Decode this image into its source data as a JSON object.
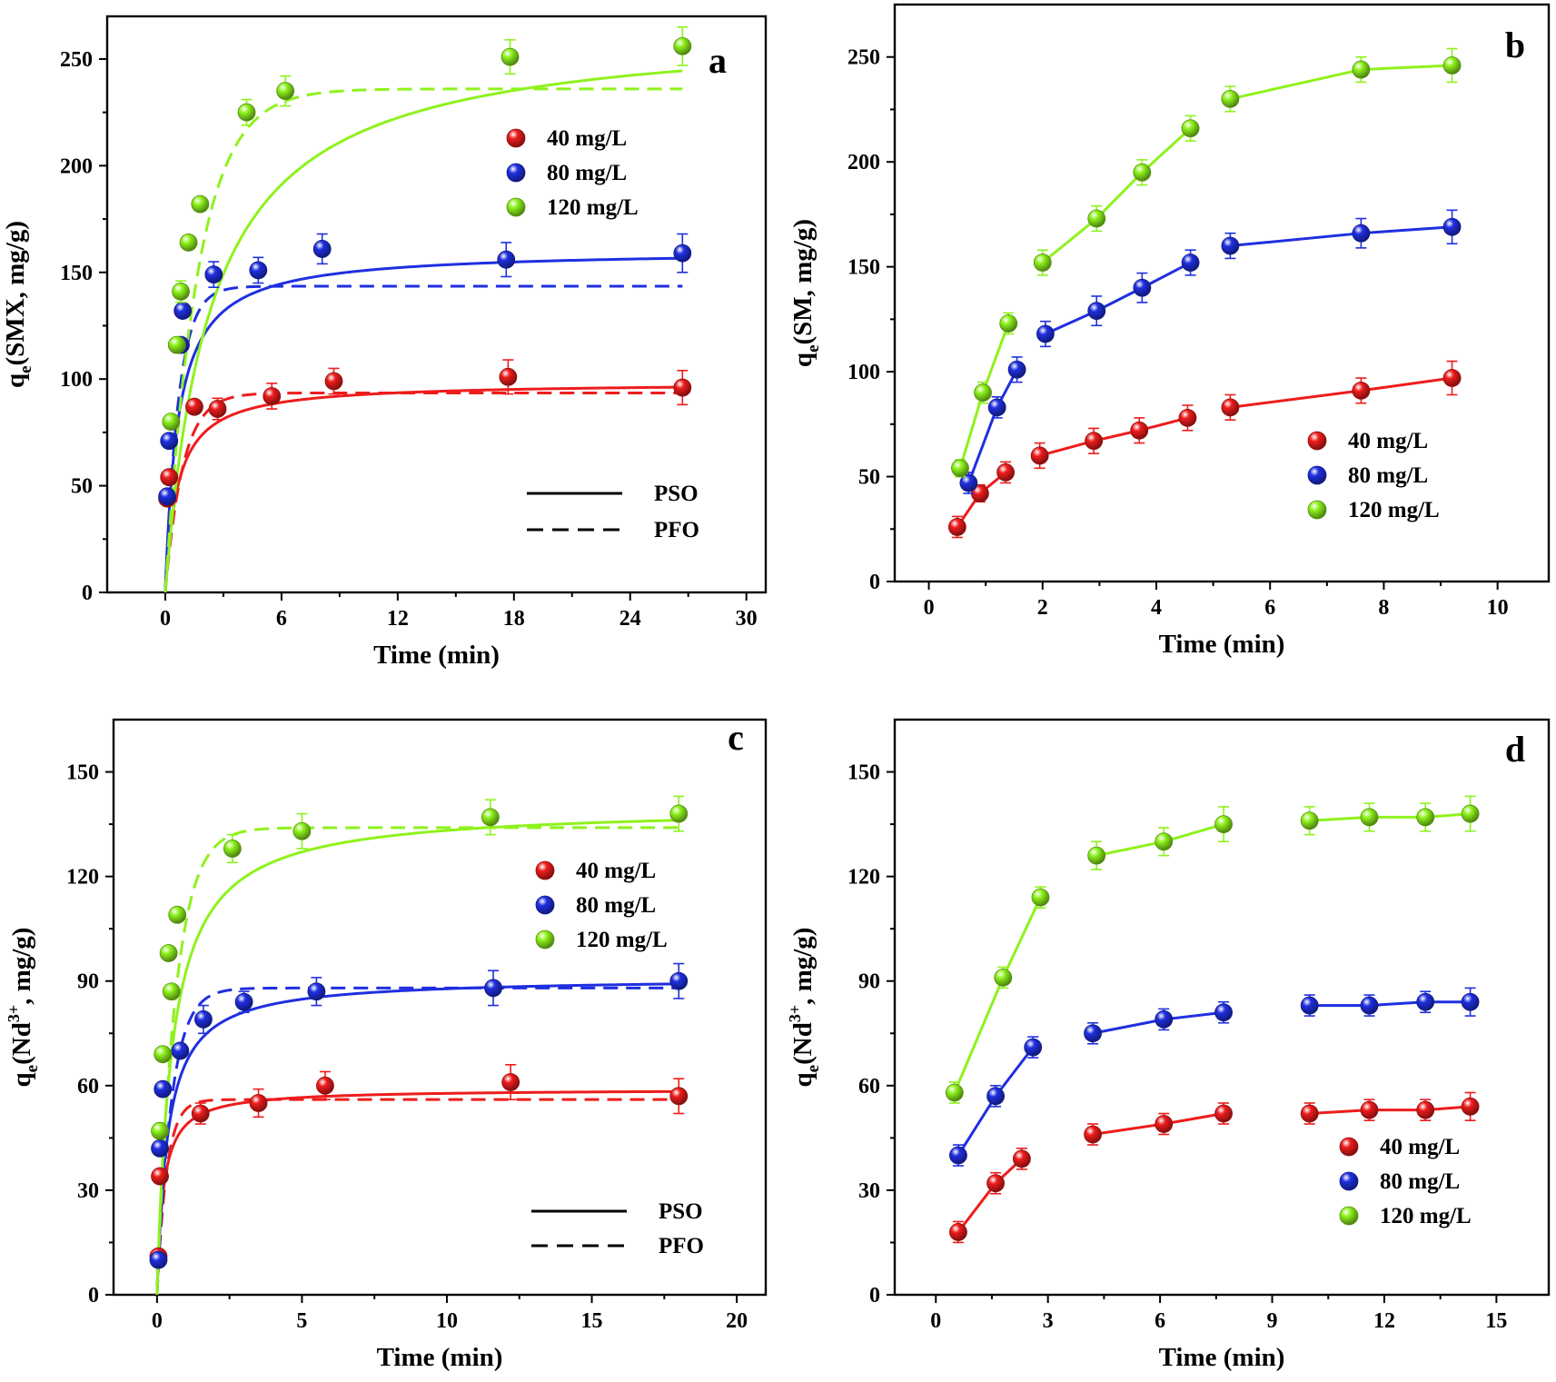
{
  "colors": {
    "40": "#ee1c1c",
    "80": "#1f2fe0",
    "120": "#8ef21c"
  },
  "chart_data": [
    {
      "id": "a",
      "type": "scatter",
      "panel_label": "a",
      "xlabel": "Time (min)",
      "ylabel_main": "q",
      "ylabel_sub": "e",
      "ylabel_rest": "(SMX, mg/g)",
      "ylabel_sup": "",
      "xlim": [
        -3,
        31
      ],
      "ylim": [
        0,
        270
      ],
      "xticks": [
        0,
        6,
        12,
        18,
        24,
        30
      ],
      "yticks": [
        0,
        50,
        100,
        150,
        200,
        250
      ],
      "xtick_labels": [
        "0",
        "6",
        "12",
        "18",
        "24",
        "30"
      ],
      "ytick_labels": [
        "0",
        "50",
        "100",
        "150",
        "200",
        "250"
      ],
      "grid": false,
      "legend_position": "upper-middle",
      "line_legend_position": "lower-right",
      "series": [
        {
          "name": "40 mg/L",
          "color_key": "40",
          "x": [
            0.1,
            0.2,
            1.5,
            2.7,
            5.5,
            8.7,
            17.7,
            26.7
          ],
          "y": [
            44,
            54,
            87,
            86,
            92,
            99,
            101,
            96
          ],
          "err": [
            0,
            0,
            3,
            5,
            6,
            6,
            8,
            8
          ]
        },
        {
          "name": "80 mg/L",
          "color_key": "80",
          "x": [
            0.1,
            0.2,
            0.8,
            0.9,
            2.5,
            4.8,
            8.1,
            17.6,
            26.7
          ],
          "y": [
            45,
            71,
            116,
            132,
            149,
            151,
            161,
            156,
            159
          ],
          "err": [
            0,
            0,
            0,
            0,
            6,
            6,
            7,
            8,
            9
          ]
        },
        {
          "name": "120 mg/L",
          "color_key": "120",
          "x": [
            0.3,
            0.6,
            0.8,
            1.2,
            1.8,
            4.2,
            6.2,
            17.8,
            26.7
          ],
          "y": [
            80,
            116,
            141,
            164,
            182,
            225,
            235,
            251,
            256
          ],
          "err": [
            0,
            0,
            5,
            0,
            0,
            6,
            7,
            8,
            9
          ]
        }
      ],
      "fits": [
        {
          "model": "PSO",
          "series": "40 mg/L",
          "style": "solid",
          "qe": 98.5,
          "k": 0.016,
          "t_max": 26.7
        },
        {
          "model": "PFO",
          "series": "40 mg/L",
          "style": "dashed",
          "qe": 93.5,
          "k": 1.1,
          "t_max": 26.7
        },
        {
          "model": "PSO",
          "series": "80 mg/L",
          "style": "solid",
          "qe": 160.5,
          "k": 0.0095,
          "t_max": 26.7
        },
        {
          "model": "PFO",
          "series": "80 mg/L",
          "style": "dashed",
          "qe": 143.5,
          "k": 1.45,
          "t_max": 26.7
        },
        {
          "model": "PSO",
          "series": "120 mg/L",
          "style": "solid",
          "qe": 266,
          "k": 0.0016,
          "t_max": 26.7
        },
        {
          "model": "PFO",
          "series": "120 mg/L",
          "style": "dashed",
          "qe": 236,
          "k": 0.6,
          "t_max": 26.7
        }
      ],
      "legend": [
        "40 mg/L",
        "80 mg/L",
        "120 mg/L"
      ],
      "line_legend": [
        {
          "label": "PSO",
          "style": "solid"
        },
        {
          "label": "PFO",
          "style": "dashed"
        }
      ]
    },
    {
      "id": "b",
      "type": "scatter",
      "panel_label": "b",
      "xlabel": "Time (min)",
      "ylabel_main": "q",
      "ylabel_sub": "e",
      "ylabel_rest": "(SM, mg/g)",
      "ylabel_sup": "",
      "xlim": [
        -0.6,
        10.9
      ],
      "ylim": [
        0,
        275
      ],
      "xticks": [
        0,
        2,
        4,
        6,
        8,
        10
      ],
      "yticks": [
        0,
        50,
        100,
        150,
        200,
        250
      ],
      "xtick_labels": [
        "0",
        "2",
        "4",
        "6",
        "8",
        "10"
      ],
      "ytick_labels": [
        "0",
        "50",
        "100",
        "150",
        "200",
        "250"
      ],
      "grid": false,
      "legend_position": "lower-right",
      "series": [
        {
          "name": "40 mg/L",
          "color_key": "40",
          "x": [
            0.5,
            0.9,
            1.35,
            1.95,
            2.9,
            3.7,
            4.55,
            5.3,
            7.6,
            9.2
          ],
          "y": [
            26,
            42,
            52,
            60,
            67,
            72,
            78,
            83,
            91,
            97
          ],
          "err": [
            5,
            4,
            5,
            6,
            6,
            6,
            6,
            6,
            6,
            8
          ],
          "segments": [
            [
              0,
              2
            ],
            [
              3,
              6
            ],
            [
              7,
              9
            ]
          ]
        },
        {
          "name": "80 mg/L",
          "color_key": "80",
          "x": [
            0.7,
            1.2,
            1.55,
            2.05,
            2.95,
            3.75,
            4.6,
            5.3,
            7.6,
            9.2
          ],
          "y": [
            47,
            83,
            101,
            118,
            129,
            140,
            152,
            160,
            166,
            169
          ],
          "err": [
            5,
            5,
            6,
            6,
            7,
            7,
            6,
            6,
            7,
            8
          ],
          "segments": [
            [
              0,
              2
            ],
            [
              3,
              6
            ],
            [
              7,
              9
            ]
          ]
        },
        {
          "name": "120 mg/L",
          "color_key": "120",
          "x": [
            0.55,
            0.95,
            1.4,
            2.0,
            2.95,
            3.75,
            4.6,
            5.3,
            7.6,
            9.2
          ],
          "y": [
            54,
            90,
            123,
            152,
            173,
            195,
            216,
            230,
            244,
            246
          ],
          "err": [
            4,
            5,
            5,
            6,
            6,
            6,
            6,
            6,
            6,
            8
          ],
          "segments": [
            [
              0,
              2
            ],
            [
              3,
              6
            ],
            [
              7,
              9
            ]
          ]
        }
      ],
      "legend": [
        "40 mg/L",
        "80 mg/L",
        "120 mg/L"
      ]
    },
    {
      "id": "c",
      "type": "scatter",
      "panel_label": "c",
      "xlabel": "Time (min)",
      "ylabel_main": "q",
      "ylabel_sub": "e",
      "ylabel_rest": "(Nd  , mg/g)",
      "ylabel_sup": "3+",
      "xlim": [
        -1.5,
        21
      ],
      "ylim": [
        0,
        165
      ],
      "xticks": [
        0,
        5,
        10,
        15,
        20
      ],
      "yticks": [
        0,
        30,
        60,
        90,
        120,
        150
      ],
      "xtick_labels": [
        "0",
        "5",
        "10",
        "15",
        "20"
      ],
      "ytick_labels": [
        "0",
        "30",
        "60",
        "90",
        "120",
        "150"
      ],
      "grid": false,
      "legend_position": "upper-middle",
      "line_legend_position": "lower-right",
      "series": [
        {
          "name": "40 mg/L",
          "color_key": "40",
          "x": [
            0.05,
            0.1,
            1.5,
            3.5,
            5.8,
            12.2,
            18.0
          ],
          "y": [
            11,
            34,
            52,
            55,
            60,
            61,
            57
          ],
          "err": [
            0,
            0,
            3,
            4,
            4,
            5,
            5
          ]
        },
        {
          "name": "80 mg/L",
          "color_key": "80",
          "x": [
            0.05,
            0.1,
            0.2,
            0.8,
            1.6,
            3.0,
            5.5,
            11.6,
            18.0
          ],
          "y": [
            10,
            42,
            59,
            70,
            79,
            84,
            87,
            88,
            90
          ],
          "err": [
            0,
            0,
            0,
            0,
            4,
            3,
            4,
            5,
            5
          ]
        },
        {
          "name": "120 mg/L",
          "color_key": "120",
          "x": [
            0.1,
            0.2,
            0.4,
            0.5,
            0.7,
            2.6,
            5.0,
            11.5,
            18.0
          ],
          "y": [
            47,
            69,
            98,
            87,
            109,
            128,
            133,
            137,
            138
          ],
          "err": [
            0,
            0,
            0,
            0,
            0,
            4,
            5,
            5,
            5
          ]
        }
      ],
      "fits": [
        {
          "model": "PSO",
          "series": "40 mg/L",
          "style": "solid",
          "qe": 59.0,
          "k": 0.08,
          "t_max": 18.0
        },
        {
          "model": "PFO",
          "series": "40 mg/L",
          "style": "dashed",
          "qe": 56.0,
          "k": 3.0,
          "t_max": 18.0
        },
        {
          "model": "PSO",
          "series": "80 mg/L",
          "style": "solid",
          "qe": 91.0,
          "k": 0.03,
          "t_max": 18.0
        },
        {
          "model": "PFO",
          "series": "80 mg/L",
          "style": "dashed",
          "qe": 88.0,
          "k": 2.0,
          "t_max": 18.0
        },
        {
          "model": "PSO",
          "series": "120 mg/L",
          "style": "solid",
          "qe": 140.0,
          "k": 0.014,
          "t_max": 18.0
        },
        {
          "model": "PFO",
          "series": "120 mg/L",
          "style": "dashed",
          "qe": 134.0,
          "k": 1.6,
          "t_max": 18.0
        }
      ],
      "legend": [
        "40 mg/L",
        "80 mg/L",
        "120 mg/L"
      ],
      "line_legend": [
        {
          "label": "PSO",
          "style": "solid"
        },
        {
          "label": "PFO",
          "style": "dashed"
        }
      ]
    },
    {
      "id": "d",
      "type": "scatter",
      "panel_label": "d",
      "xlabel": "Time (min)",
      "ylabel_main": "q",
      "ylabel_sub": "e",
      "ylabel_rest": "(Nd  , mg/g)",
      "ylabel_sup": "3+",
      "xlim": [
        -1.1,
        16.4
      ],
      "ylim": [
        0,
        165
      ],
      "xticks": [
        0,
        3,
        6,
        9,
        12,
        15
      ],
      "yticks": [
        0,
        30,
        60,
        90,
        120,
        150
      ],
      "xtick_labels": [
        "0",
        "3",
        "6",
        "9",
        "12",
        "15"
      ],
      "ytick_labels": [
        "0",
        "30",
        "60",
        "90",
        "120",
        "150"
      ],
      "grid": false,
      "legend_position": "lower-right",
      "series": [
        {
          "name": "40 mg/L",
          "color_key": "40",
          "x": [
            0.6,
            1.6,
            2.3,
            4.2,
            6.1,
            7.7,
            10.0,
            11.6,
            13.1,
            14.3
          ],
          "y": [
            18,
            32,
            39,
            46,
            49,
            52,
            52,
            53,
            53,
            54
          ],
          "err": [
            3,
            3,
            3,
            3,
            3,
            3,
            3,
            3,
            3,
            4
          ],
          "segments": [
            [
              0,
              2
            ],
            [
              3,
              5
            ],
            [
              6,
              9
            ]
          ]
        },
        {
          "name": "80 mg/L",
          "color_key": "80",
          "x": [
            0.6,
            1.6,
            2.6,
            4.2,
            6.1,
            7.7,
            10.0,
            11.6,
            13.1,
            14.3
          ],
          "y": [
            40,
            57,
            71,
            75,
            79,
            81,
            83,
            83,
            84,
            84
          ],
          "err": [
            3,
            3,
            3,
            3,
            3,
            3,
            3,
            3,
            3,
            4
          ],
          "segments": [
            [
              0,
              2
            ],
            [
              3,
              5
            ],
            [
              6,
              9
            ]
          ]
        },
        {
          "name": "120 mg/L",
          "color_key": "120",
          "x": [
            0.5,
            1.8,
            2.8,
            4.3,
            6.1,
            7.7,
            10.0,
            11.6,
            13.1,
            14.3
          ],
          "y": [
            58,
            91,
            114,
            126,
            130,
            135,
            136,
            137,
            137,
            138
          ],
          "err": [
            3,
            3,
            3,
            4,
            4,
            5,
            4,
            4,
            4,
            5
          ],
          "segments": [
            [
              0,
              2
            ],
            [
              3,
              5
            ],
            [
              6,
              9
            ]
          ]
        }
      ],
      "legend": [
        "40 mg/L",
        "80 mg/L",
        "120 mg/L"
      ]
    }
  ]
}
